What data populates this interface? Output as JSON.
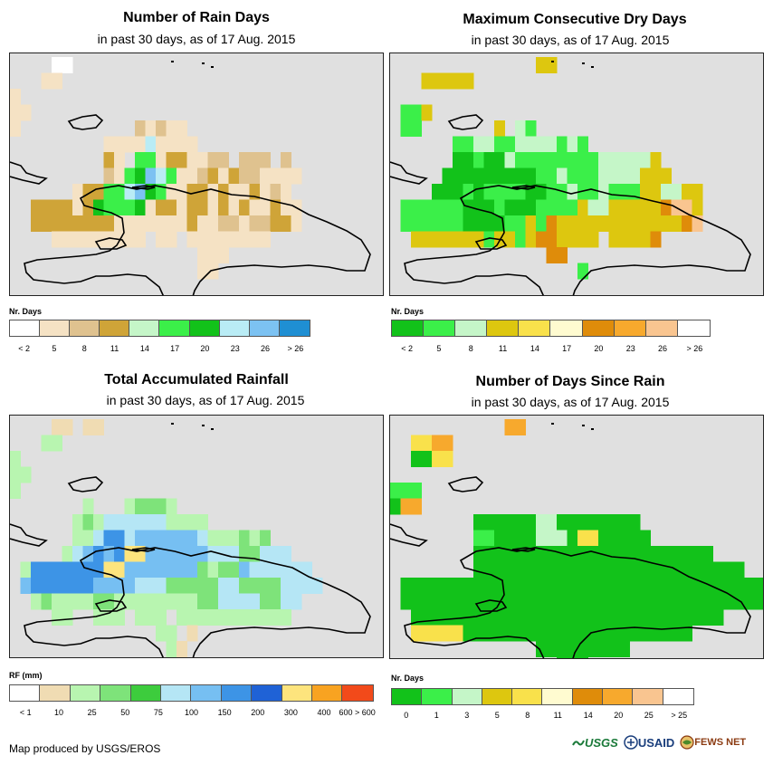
{
  "panels": [
    {
      "id": "rain_days",
      "title": "Number of Rain Days",
      "subtitle": "in past 30 days, as of 17 Aug. 2015",
      "legend_title": "Nr. Days",
      "legend_colors": [
        "#ffffff",
        "#f5e2c4",
        "#dfc28f",
        "#cfa438",
        "#c5f6c8",
        "#3bef49",
        "#12c21a",
        "#b9ecf5",
        "#7cc2f2",
        "#1f8fd3"
      ],
      "legend_labels": [
        "< 2",
        "5",
        "8",
        "11",
        "14",
        "17",
        "20",
        "23",
        "26",
        "> 26"
      ],
      "grid": [
        "....ww..............................",
        "...tt...............................",
        "t...................................",
        "tt..................................",
        "t...........xtxtt...................",
        ".........ttttbtttt..................",
        ".........mt.GGtmmttxx.xxx.x.........",
        ".........xtGgBbGttxmtmxxtttt........",
        "......tmmGGbBgGttmmtmttmtxt.........",
        "..mmmmtmgGGGgtmmtmmtmtmttmtt........",
        "..mmmmmmmmtttttttmttxxtxxmmt........",
        "....ttttttttt.tt.tttttttt...........",
        "..................ttt...............",
        "..................tt................"
      ]
    },
    {
      "id": "dry_days",
      "title": "Maximum Consecutive Dry Days",
      "subtitle": "in past 30 days, as of 17 Aug. 2015",
      "legend_title": "Nr. Days",
      "legend_colors": [
        "#12c21a",
        "#3bef49",
        "#c5f6c8",
        "#ddc70f",
        "#f9e14b",
        "#fffbd0",
        "#df8c0a",
        "#f7a92d",
        "#f9c590",
        "#ffffff"
      ],
      "legend_labels": [
        "< 2",
        "5",
        "8",
        "11",
        "14",
        "17",
        "20",
        "23",
        "26",
        "> 26"
      ],
      "grid": [
        "..............yy....................",
        "...yyyyy............................",
        "....................................",
        ".ggy................................",
        ".gg.......y.ug......................",
        "......gguugguuuugug.................",
        "......GGgGGugggggggguuuuuy..........",
        ".....GGGGGGGGGgguggguuuuyyy.........",
        "....GGGgGggggGGgguggugggyyuuyy......",
        ".ggggggGGGgGGGggggyuuyyyyyoaay......",
        ".ggggggGGGGggygoyyyyyyyyyyyyoa......",
        "..yyyyyyygyygyooyyyy.yyyyo..........",
        "...............oo...................",
        "..................g................."
      ]
    },
    {
      "id": "rainfall",
      "title": "Total Accumulated Rainfall",
      "subtitle": "in past 30 days, as of 17 Aug. 2015",
      "legend_title": "RF (mm)",
      "legend_colors": [
        "#ffffff",
        "#f0dcb3",
        "#b8f5b0",
        "#7ee37a",
        "#3dcc3d",
        "#b5e6f5",
        "#76bff2",
        "#3d94e6",
        "#1f62d6",
        "#fde47d",
        "#f8a321",
        "#f24a1a"
      ],
      "legend_labels": [
        "< 1",
        "10",
        "25",
        "50",
        "75",
        "100",
        "150",
        "200",
        "300",
        "400",
        "600 > 600"
      ],
      "grid": [
        "....tt.tt...........................",
        "...gg...............................",
        "g...................................",
        "gg..................................",
        "g...................................",
        ".......g...gGGGg....................",
        "......gGgccccccgggg.................",
        "......ggcBBcbbbbbbcgggGgG...........",
        ".....gcbBbBYYbbbbbbcccGGccc.........",
        ".gBBBBBBBYYbbbbbbbGgGGbcccccc.......",
        ".bBBBBBBbbbbcccGGGGGccGGGGcccc......",
        "..gGggggGGggggggggGGccccGGcc........",
        "....gg..ggg.ggg.ggggggggggg.........",
        "..............gg.t..................",
        "...............gt..................."
      ]
    },
    {
      "id": "days_since",
      "title": "Number of Days Since Rain",
      "subtitle": "in past 30 days, as of 17 Aug. 2015",
      "legend_title": "Nr. Days",
      "legend_colors": [
        "#12c21a",
        "#3bef49",
        "#c5f6c8",
        "#ddc70f",
        "#f9e14b",
        "#fffbd0",
        "#df8c0a",
        "#f7a92d",
        "#f9c590",
        "#ffffff"
      ],
      "legend_labels": [
        "0",
        "1",
        "3",
        "5",
        "8",
        "11",
        "14",
        "20",
        "25",
        "> 25"
      ],
      "grid": [
        "...........oo.......................",
        "..yyoo..............................",
        "..GGyy..............................",
        "....................................",
        "ggg.................................",
        "Goo.................................",
        "........GGGGGGuuGGGGGGGG............",
        "........ggGGGGuuuGyyGGGGG...........",
        "........GGGGGGGGGGGGGGGGGGGGGGG.....",
        "........GGGGGGGGGGGGGGGGGGGGGGGGGG..",
        ".GGGGGGGGGGGGGGGGGGGGGGGGGGGGGGGGGGG",
        ".GGGGGGGGGGGGGGGGGGGGGGGGGGGGGGGGGGG",
        "..GGGGGGGGGGGGGGGGGGGGGGGGGGGGGG....",
        "..yyyyyGGGGGGGGGGGGGGGGGGGGGG.......",
        "..............GGGGGGGGG.............",
        "................GGG.................",
        "................GGG................."
      ]
    }
  ],
  "cell_colors": {
    "rain_days": {
      "w": "#ffffff",
      "t": "#f5e2c4",
      "x": "#dfc28f",
      "m": "#cfa438",
      "u": "#c5f6c8",
      "G": "#3bef49",
      "g": "#12c21a",
      "b": "#b9ecf5",
      "B": "#7cc2f2"
    },
    "dry_days": {
      "G": "#12c21a",
      "g": "#3bef49",
      "u": "#c5f6c8",
      "y": "#ddc70f",
      "a": "#f9c590",
      "o": "#df8c0a"
    },
    "rainfall": {
      "t": "#f0dcb3",
      "g": "#b8f5b0",
      "G": "#7ee37a",
      "c": "#b5e6f5",
      "b": "#76bff2",
      "B": "#3d94e6",
      "Y": "#fde47d"
    },
    "days_since": {
      "G": "#12c21a",
      "g": "#3bef49",
      "u": "#c5f6c8",
      "y": "#f9e14b",
      "o": "#f7a92d"
    }
  },
  "footer": "Map produced by USGS/EROS",
  "logos": {
    "usgs": "USGS",
    "usaid": "USAID",
    "fews": "FEWS NET"
  }
}
